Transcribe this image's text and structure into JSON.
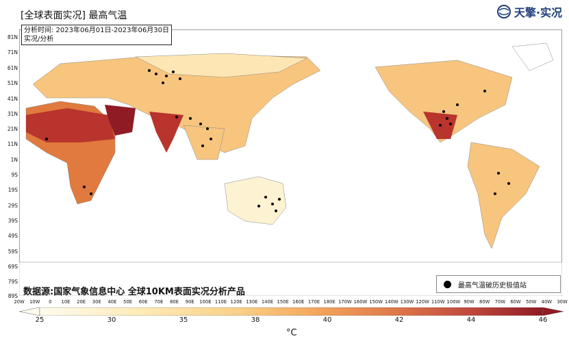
{
  "header": {
    "title": "[全球表面实况] 最高气温",
    "logo_text": "天擎·实况",
    "period_line": "分析时间: 2023年06月01日-2023年06月30日",
    "type_line": "实况/分析"
  },
  "colors": {
    "ocean": "#ffffff",
    "land_cool": "#fdf2d2",
    "land_mid": "#f7c57d",
    "land_warm": "#e07a3e",
    "land_hot": "#b8342d",
    "land_extreme": "#8f1b24",
    "record_dot": "#000000",
    "logo": "#1f3f77"
  },
  "axes": {
    "lat_labels": [
      "81N",
      "71N",
      "61N",
      "51N",
      "41N",
      "31N",
      "21N",
      "11N",
      "1N",
      "9S",
      "19S",
      "29S",
      "39S",
      "49S",
      "59S",
      "69S",
      "79S",
      "89S"
    ],
    "lon_labels": [
      "20W",
      "10W",
      "0",
      "10E",
      "20E",
      "30E",
      "40E",
      "50E",
      "60E",
      "70E",
      "80E",
      "90E",
      "100E",
      "110E",
      "120E",
      "130E",
      "140E",
      "150E",
      "160E",
      "170E",
      "180E",
      "170W",
      "160W",
      "150W",
      "140W",
      "130W",
      "120W",
      "110W",
      "100W",
      "90W",
      "80W",
      "70W",
      "60W",
      "50W",
      "40W",
      "30W"
    ]
  },
  "source_text": "数据源:国家气象信息中心 全球10KM表面实况分析产品",
  "legend": {
    "record_label": "最高气温破历史极值站"
  },
  "colorbar": {
    "ticks": [
      "25",
      "30",
      "35",
      "38",
      "40",
      "42",
      "44",
      "46"
    ],
    "unit": "°C"
  }
}
